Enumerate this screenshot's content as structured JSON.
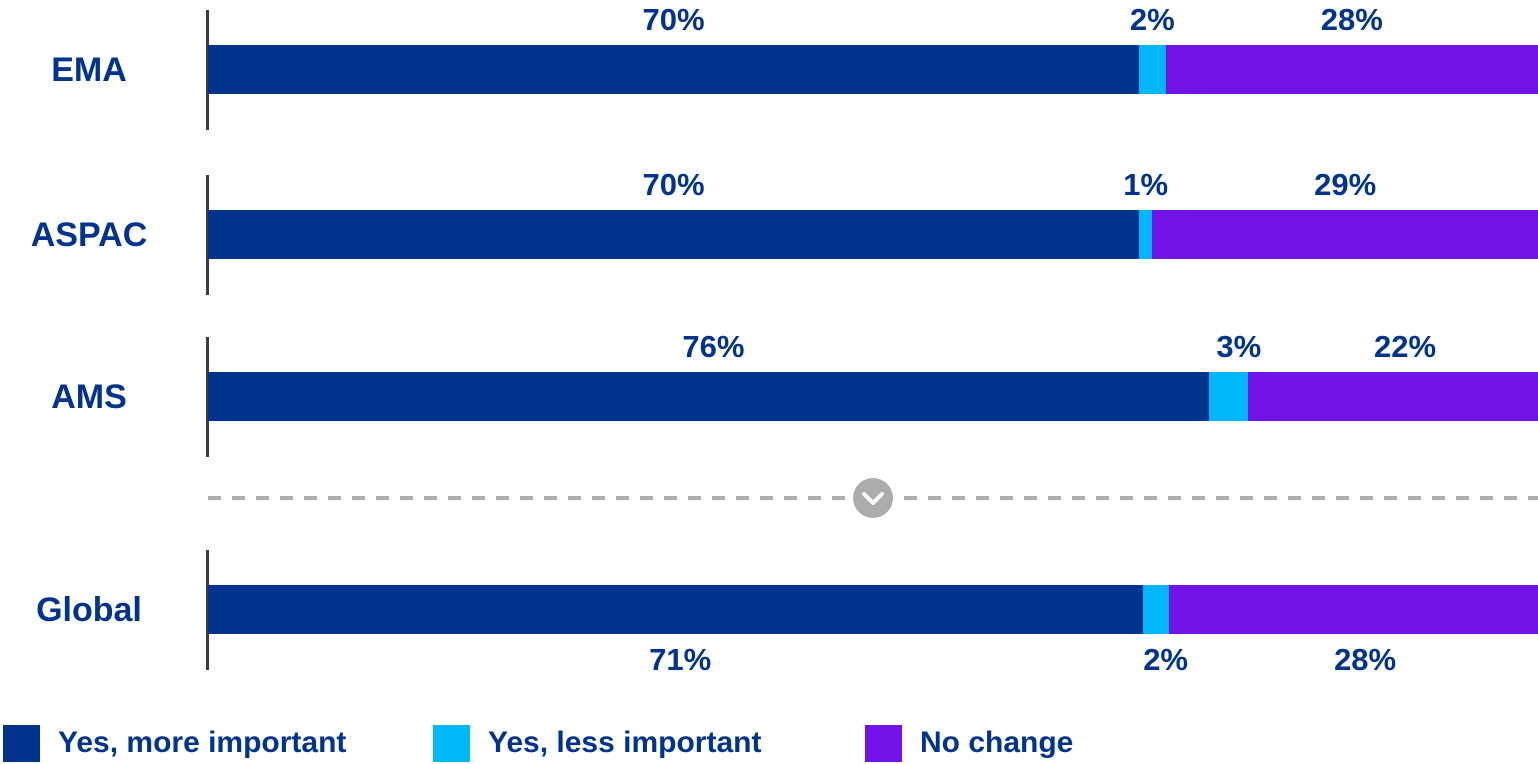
{
  "chart_data": {
    "type": "bar",
    "orientation": "horizontal",
    "stacked": true,
    "unit": "percent",
    "xlim": [
      0,
      100
    ],
    "grid": false,
    "legend_position": "bottom",
    "series": [
      {
        "name": "Yes, more important",
        "color": "#00338D"
      },
      {
        "name": "Yes, less important",
        "color": "#00B8F9"
      },
      {
        "name": "No change",
        "color": "#7213EA"
      }
    ],
    "categories": [
      "EMA",
      "ASPAC",
      "AMS",
      "Global"
    ],
    "rows": [
      {
        "label": "EMA",
        "values": [
          70,
          2,
          28
        ],
        "value_labels": [
          "70%",
          "2%",
          "28%"
        ],
        "value_labels_position": "above"
      },
      {
        "label": "ASPAC",
        "values": [
          70,
          1,
          29
        ],
        "value_labels": [
          "70%",
          "1%",
          "29%"
        ],
        "value_labels_position": "above"
      },
      {
        "label": "AMS",
        "values": [
          76,
          3,
          22
        ],
        "value_labels": [
          "76%",
          "3%",
          "22%"
        ],
        "value_labels_position": "above"
      },
      {
        "label": "Global",
        "values": [
          71,
          2,
          28
        ],
        "value_labels": [
          "71%",
          "2%",
          "28%"
        ],
        "value_labels_position": "below"
      }
    ],
    "divider": {
      "after_row": "AMS",
      "style": "dashed",
      "icon": "chevron-down"
    }
  },
  "legend": {
    "items": [
      {
        "label": "Yes, more important",
        "color": "#00338D"
      },
      {
        "label": "Yes, less important",
        "color": "#00B8F9"
      },
      {
        "label": "No change",
        "color": "#7213EA"
      }
    ]
  },
  "colors": {
    "label_text": "#00338D",
    "axis_tick": "#3C3C3C",
    "divider_gray": "#ACACAC",
    "chevron": "#FFFFFF",
    "background": "#FFFFFF"
  }
}
